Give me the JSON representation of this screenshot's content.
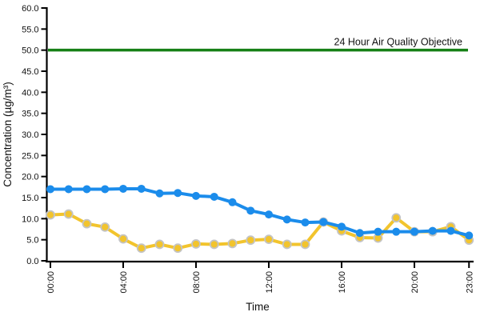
{
  "chart_data": {
    "type": "line",
    "title": "",
    "xlabel": "Time",
    "ylabel": "Concentration (µg/m³)",
    "ylim": [
      0,
      60
    ],
    "y_tick_step": 5,
    "y_tick_decimals": 1,
    "x_tick_hours": [
      0,
      4,
      8,
      12,
      16,
      20,
      23
    ],
    "x_tick_labels": [
      "00:00",
      "04:00",
      "08:00",
      "12:00",
      "16:00",
      "20:00",
      "23:00"
    ],
    "grid": false,
    "legend_position": "none",
    "reference_line": {
      "value": 50.0,
      "label": "24 Hour Air Quality Objective",
      "color": "#168016"
    },
    "series": [
      {
        "id": "yellow-series",
        "color": "#f2c42d",
        "marker_outline": "#c4c4c4",
        "values": [
          10.9,
          11.1,
          8.8,
          8.0,
          5.2,
          3.0,
          3.9,
          3.0,
          4.0,
          3.9,
          4.1,
          4.9,
          5.1,
          3.9,
          3.9,
          9.2,
          7.1,
          5.5,
          5.4,
          10.2,
          6.9,
          6.9,
          8.1,
          4.9
        ]
      },
      {
        "id": "blue-series",
        "color": "#1b8ceb",
        "marker_outline": "none",
        "values": [
          17.0,
          17.0,
          17.0,
          17.0,
          17.1,
          17.1,
          16.0,
          16.1,
          15.4,
          15.2,
          13.9,
          11.9,
          11.0,
          9.8,
          9.1,
          9.2,
          8.1,
          6.6,
          6.9,
          6.9,
          6.9,
          7.1,
          7.1,
          6.0
        ]
      }
    ],
    "colors": {
      "axis": "#000000",
      "tick_text": "#1a1a1a",
      "background": "#ffffff"
    }
  }
}
